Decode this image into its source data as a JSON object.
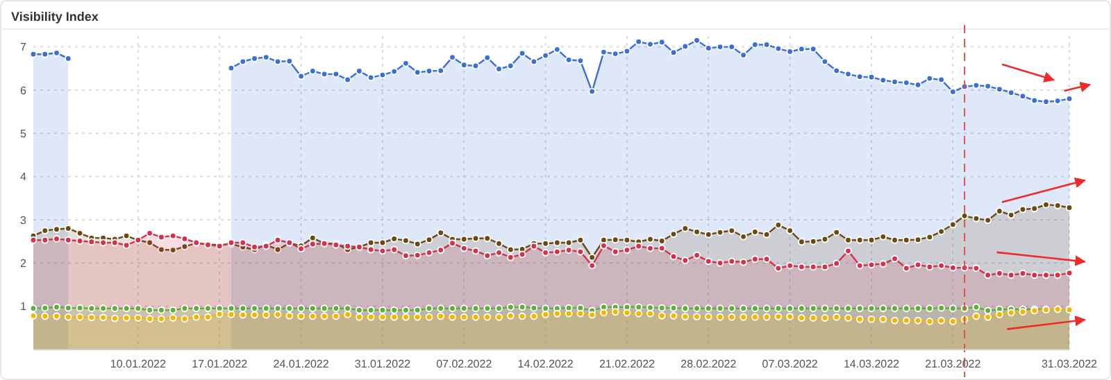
{
  "chart_data": {
    "type": "area",
    "title": "Visibility Index",
    "xlim": [
      "2022-01-01",
      "2022-03-31"
    ],
    "xticks": [
      {
        "value": "2022-01-10",
        "label": "10.01.2022"
      },
      {
        "value": "2022-01-17",
        "label": "17.01.2022"
      },
      {
        "value": "2022-01-24",
        "label": "24.01.2022"
      },
      {
        "value": "2022-01-31",
        "label": "31.01.2022"
      },
      {
        "value": "2022-02-07",
        "label": "07.02.2022"
      },
      {
        "value": "2022-02-14",
        "label": "14.02.2022"
      },
      {
        "value": "2022-02-21",
        "label": "21.02.2022"
      },
      {
        "value": "2022-02-28",
        "label": "28.02.2022"
      },
      {
        "value": "2022-03-07",
        "label": "07.03.2022"
      },
      {
        "value": "2022-03-14",
        "label": "14.03.2022"
      },
      {
        "value": "2022-03-21",
        "label": "21.03.2022"
      },
      {
        "value": "2022-03-31",
        "label": "31.03.2022"
      }
    ],
    "x": [
      "2022-01-01",
      "2022-01-02",
      "2022-01-03",
      "2022-01-04",
      "2022-01-05",
      "2022-01-06",
      "2022-01-07",
      "2022-01-08",
      "2022-01-09",
      "2022-01-10",
      "2022-01-11",
      "2022-01-12",
      "2022-01-13",
      "2022-01-14",
      "2022-01-15",
      "2022-01-16",
      "2022-01-17",
      "2022-01-18",
      "2022-01-19",
      "2022-01-20",
      "2022-01-21",
      "2022-01-22",
      "2022-01-23",
      "2022-01-24",
      "2022-01-25",
      "2022-01-26",
      "2022-01-27",
      "2022-01-28",
      "2022-01-29",
      "2022-01-30",
      "2022-01-31",
      "2022-02-01",
      "2022-02-02",
      "2022-02-03",
      "2022-02-04",
      "2022-02-05",
      "2022-02-06",
      "2022-02-07",
      "2022-02-08",
      "2022-02-09",
      "2022-02-10",
      "2022-02-11",
      "2022-02-12",
      "2022-02-13",
      "2022-02-14",
      "2022-02-15",
      "2022-02-16",
      "2022-02-17",
      "2022-02-18",
      "2022-02-19",
      "2022-02-20",
      "2022-02-21",
      "2022-02-22",
      "2022-02-23",
      "2022-02-24",
      "2022-02-25",
      "2022-02-26",
      "2022-02-27",
      "2022-02-28",
      "2022-03-01",
      "2022-03-02",
      "2022-03-03",
      "2022-03-04",
      "2022-03-05",
      "2022-03-06",
      "2022-03-07",
      "2022-03-08",
      "2022-03-09",
      "2022-03-10",
      "2022-03-11",
      "2022-03-12",
      "2022-03-13",
      "2022-03-14",
      "2022-03-15",
      "2022-03-16",
      "2022-03-17",
      "2022-03-18",
      "2022-03-19",
      "2022-03-20",
      "2022-03-21",
      "2022-03-22",
      "2022-03-23",
      "2022-03-24",
      "2022-03-25",
      "2022-03-26",
      "2022-03-27",
      "2022-03-28",
      "2022-03-29",
      "2022-03-30",
      "2022-03-31"
    ],
    "ylim": [
      0,
      7.25
    ],
    "yticks": [
      1,
      2,
      3,
      4,
      5,
      6,
      7
    ],
    "grid": true,
    "marker": "circle",
    "ref_lines": [
      {
        "axis": "x",
        "value": "2022-03-22",
        "color": "#d9534f",
        "line_style": "dashed"
      }
    ],
    "series": [
      {
        "color": "#3a6fd8",
        "values": [
          6.83,
          6.83,
          6.86,
          6.73,
          null,
          null,
          null,
          null,
          null,
          null,
          null,
          null,
          null,
          null,
          null,
          null,
          null,
          6.51,
          6.66,
          6.73,
          6.76,
          6.66,
          6.67,
          6.32,
          6.44,
          6.37,
          6.37,
          6.24,
          6.44,
          6.29,
          6.35,
          6.43,
          6.62,
          6.41,
          6.44,
          6.45,
          6.76,
          6.58,
          6.56,
          6.75,
          6.49,
          6.56,
          6.85,
          6.66,
          6.8,
          6.94,
          6.7,
          6.68,
          5.97,
          6.88,
          6.84,
          6.9,
          7.12,
          7.06,
          7.11,
          6.87,
          7.01,
          7.15,
          6.97,
          7,
          7,
          6.81,
          7.05,
          7.05,
          6.96,
          6.89,
          6.95,
          6.95,
          6.66,
          6.45,
          6.37,
          6.31,
          6.3,
          6.23,
          6.19,
          6.17,
          6.12,
          6.27,
          6.24,
          5.96,
          6.08,
          6.11,
          6.09,
          6.02,
          5.94,
          5.86,
          5.76,
          5.73,
          5.75,
          5.8
        ]
      },
      {
        "color": "#6b4a12",
        "values": [
          2.63,
          2.75,
          2.78,
          2.8,
          2.69,
          2.58,
          2.58,
          2.55,
          2.63,
          2.53,
          2.47,
          2.31,
          2.3,
          2.38,
          2.46,
          2.43,
          2.42,
          2.44,
          2.37,
          2.31,
          2.42,
          2.31,
          2.46,
          2.4,
          2.58,
          2.45,
          2.45,
          2.31,
          2.37,
          2.47,
          2.47,
          2.56,
          2.52,
          2.44,
          2.54,
          2.7,
          2.55,
          2.55,
          2.57,
          2.57,
          2.45,
          2.31,
          2.32,
          2.45,
          2.45,
          2.47,
          2.47,
          2.53,
          2.13,
          2.53,
          2.54,
          2.53,
          2.49,
          2.55,
          2.51,
          2.67,
          2.8,
          2.72,
          2.66,
          2.71,
          2.75,
          2.61,
          2.72,
          2.66,
          2.88,
          2.75,
          2.49,
          2.5,
          2.55,
          2.71,
          2.53,
          2.53,
          2.53,
          2.61,
          2.53,
          2.53,
          2.54,
          2.6,
          2.73,
          2.89,
          3.09,
          3.03,
          2.99,
          3.2,
          3.11,
          3.24,
          3.26,
          3.35,
          3.33,
          3.28
        ]
      },
      {
        "color": "#d6304a",
        "values": [
          2.53,
          2.53,
          2.56,
          2.53,
          2.51,
          2.49,
          2.47,
          2.47,
          2.41,
          2.53,
          2.69,
          2.6,
          2.63,
          2.56,
          2.47,
          2.42,
          2.39,
          2.47,
          2.47,
          2.37,
          2.39,
          2.53,
          2.47,
          2.33,
          2.44,
          2.45,
          2.42,
          2.39,
          2.37,
          2.31,
          2.28,
          2.31,
          2.17,
          2.18,
          2.24,
          2.3,
          2.46,
          2.34,
          2.28,
          2.17,
          2.24,
          2.13,
          2.2,
          2.39,
          2.24,
          2.26,
          2.3,
          2.26,
          1.94,
          2.4,
          2.26,
          2.3,
          2.39,
          2.34,
          2.34,
          2.15,
          2.06,
          2.18,
          2.04,
          2,
          2.04,
          2.02,
          2.09,
          2.09,
          1.88,
          1.94,
          1.91,
          1.91,
          1.91,
          1.99,
          2.28,
          1.94,
          1.96,
          1.98,
          2.1,
          1.88,
          1.96,
          1.91,
          1.94,
          1.89,
          1.89,
          1.88,
          1.72,
          1.76,
          1.72,
          1.76,
          1.72,
          1.72,
          1.72,
          1.77
        ]
      },
      {
        "color": "#5fae3c",
        "values": [
          0.95,
          0.96,
          0.98,
          0.96,
          0.96,
          0.95,
          0.95,
          0.95,
          0.95,
          0.95,
          0.91,
          0.91,
          0.91,
          0.95,
          0.95,
          0.95,
          0.95,
          0.95,
          0.95,
          0.95,
          0.95,
          0.95,
          0.95,
          0.95,
          0.95,
          0.95,
          0.95,
          0.95,
          0.91,
          0.91,
          0.91,
          0.91,
          0.91,
          0.91,
          0.95,
          0.95,
          0.95,
          0.95,
          0.95,
          0.95,
          0.95,
          0.98,
          0.98,
          0.96,
          0.95,
          0.95,
          0.96,
          0.96,
          0.9,
          0.98,
          0.98,
          0.98,
          0.98,
          0.97,
          0.96,
          0.96,
          0.95,
          0.95,
          0.95,
          0.95,
          0.95,
          0.95,
          0.95,
          0.95,
          0.95,
          0.95,
          0.95,
          0.95,
          0.95,
          0.95,
          0.95,
          0.95,
          0.95,
          0.95,
          0.95,
          0.95,
          0.95,
          0.95,
          0.96,
          0.95,
          0.95,
          0.98,
          0.9,
          0.93,
          0.93,
          0.93,
          0.93,
          0.93,
          0.93,
          0.93
        ]
      },
      {
        "color": "#f5b400",
        "values": [
          0.78,
          0.77,
          0.77,
          0.75,
          0.75,
          0.74,
          0.74,
          0.72,
          0.73,
          0.73,
          0.71,
          0.71,
          0.73,
          0.71,
          0.75,
          0.75,
          0.82,
          0.81,
          0.8,
          0.8,
          0.8,
          0.81,
          0.78,
          0.77,
          0.77,
          0.77,
          0.77,
          0.81,
          0.75,
          0.75,
          0.75,
          0.75,
          0.75,
          0.75,
          0.75,
          0.77,
          0.75,
          0.75,
          0.75,
          0.75,
          0.75,
          0.78,
          0.77,
          0.77,
          0.81,
          0.83,
          0.83,
          0.83,
          0.8,
          0.85,
          0.87,
          0.85,
          0.83,
          0.83,
          0.78,
          0.78,
          0.76,
          0.76,
          0.76,
          0.75,
          0.75,
          0.75,
          0.75,
          0.75,
          0.76,
          0.76,
          0.73,
          0.73,
          0.73,
          0.75,
          0.73,
          0.7,
          0.7,
          0.7,
          0.67,
          0.67,
          0.67,
          0.65,
          0.67,
          0.65,
          0.7,
          0.77,
          0.75,
          0.81,
          0.85,
          0.87,
          0.9,
          0.92,
          0.93,
          0.92
        ]
      }
    ]
  }
}
